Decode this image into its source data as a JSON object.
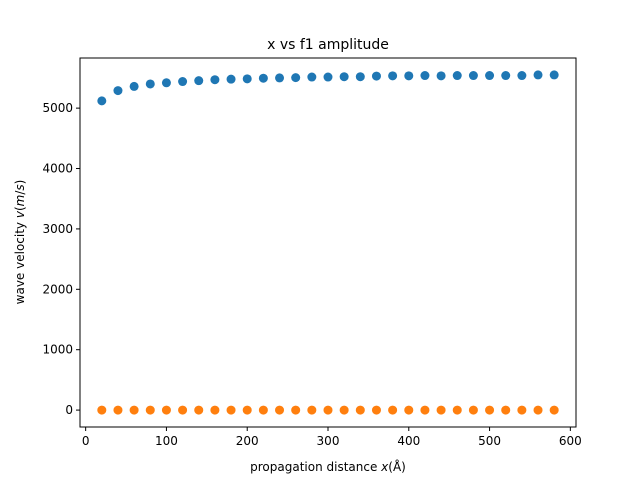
{
  "chart_data": {
    "type": "scatter",
    "title": "x vs f1 amplitude",
    "xlabel": "propagation distance x(Å)",
    "ylabel": "wave velocity v(m/s)",
    "xlim": [
      -7,
      607
    ],
    "ylim": [
      -280,
      5830
    ],
    "xticks": [
      0,
      100,
      200,
      300,
      400,
      500,
      600
    ],
    "yticks": [
      0,
      1000,
      2000,
      3000,
      4000,
      5000
    ],
    "grid": false,
    "legend": "none",
    "series": [
      {
        "color": "#1f77b4",
        "x": [
          20,
          40,
          60,
          80,
          100,
          120,
          140,
          160,
          180,
          200,
          220,
          240,
          260,
          280,
          300,
          320,
          340,
          360,
          380,
          400,
          420,
          440,
          460,
          480,
          500,
          520,
          540,
          560,
          580
        ],
        "y": [
          5120,
          5290,
          5360,
          5400,
          5420,
          5440,
          5455,
          5470,
          5480,
          5485,
          5495,
          5500,
          5505,
          5515,
          5515,
          5520,
          5520,
          5530,
          5535,
          5535,
          5540,
          5535,
          5540,
          5540,
          5540,
          5540,
          5540,
          5550,
          5550
        ]
      },
      {
        "color": "#ff7f0e",
        "x": [
          20,
          40,
          60,
          80,
          100,
          120,
          140,
          160,
          180,
          200,
          220,
          240,
          260,
          280,
          300,
          320,
          340,
          360,
          380,
          400,
          420,
          440,
          460,
          480,
          500,
          520,
          540,
          560,
          580
        ],
        "y": [
          0,
          0,
          0,
          0,
          0,
          0,
          0,
          0,
          0,
          0,
          0,
          0,
          0,
          0,
          0,
          0,
          0,
          0,
          0,
          0,
          0,
          0,
          0,
          0,
          0,
          0,
          0,
          0,
          0
        ]
      }
    ]
  }
}
